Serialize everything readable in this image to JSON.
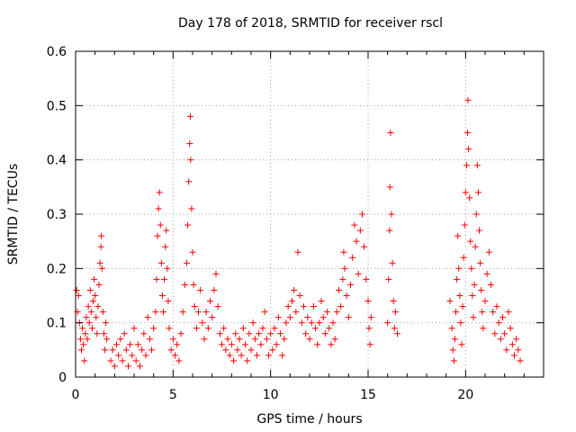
{
  "chart_data": {
    "type": "scatter",
    "title": "Day 178 of 2018, SRMTID for receiver rscl",
    "xlabel": "GPS time / hours",
    "ylabel": "SRMTID / TECUs",
    "xlim": [
      0,
      24
    ],
    "ylim": [
      0,
      0.6
    ],
    "x_ticks": [
      "0",
      "5",
      "10",
      "15",
      "20"
    ],
    "y_ticks": [
      "0",
      "0.1",
      "0.2",
      "0.3",
      "0.4",
      "0.5",
      "0.6"
    ],
    "grid": true,
    "marker": "+",
    "series": [
      {
        "name": "SRMTID",
        "color": "#ff0000",
        "points": [
          [
            0.05,
            0.16
          ],
          [
            0.1,
            0.12
          ],
          [
            0.15,
            0.15
          ],
          [
            0.2,
            0.1
          ],
          [
            0.25,
            0.07
          ],
          [
            0.3,
            0.05
          ],
          [
            0.35,
            0.09
          ],
          [
            0.4,
            0.06
          ],
          [
            0.45,
            0.03
          ],
          [
            0.5,
            0.08
          ],
          [
            0.55,
            0.11
          ],
          [
            0.6,
            0.07
          ],
          [
            0.65,
            0.13
          ],
          [
            0.7,
            0.1
          ],
          [
            0.75,
            0.16
          ],
          [
            0.8,
            0.12
          ],
          [
            0.85,
            0.09
          ],
          [
            0.9,
            0.14
          ],
          [
            0.95,
            0.18
          ],
          [
            1.0,
            0.15
          ],
          [
            1.05,
            0.11
          ],
          [
            1.1,
            0.08
          ],
          [
            1.15,
            0.13
          ],
          [
            1.2,
            0.17
          ],
          [
            1.25,
            0.21
          ],
          [
            1.3,
            0.24
          ],
          [
            1.32,
            0.26
          ],
          [
            1.35,
            0.2
          ],
          [
            1.4,
            0.12
          ],
          [
            1.45,
            0.08
          ],
          [
            1.5,
            0.05
          ],
          [
            1.55,
            0.1
          ],
          [
            1.6,
            0.07
          ],
          [
            1.8,
            0.03
          ],
          [
            1.9,
            0.05
          ],
          [
            2.0,
            0.02
          ],
          [
            2.1,
            0.06
          ],
          [
            2.2,
            0.04
          ],
          [
            2.3,
            0.07
          ],
          [
            2.4,
            0.03
          ],
          [
            2.5,
            0.08
          ],
          [
            2.6,
            0.05
          ],
          [
            2.7,
            0.02
          ],
          [
            2.8,
            0.06
          ],
          [
            2.9,
            0.04
          ],
          [
            3.0,
            0.09
          ],
          [
            3.1,
            0.03
          ],
          [
            3.2,
            0.06
          ],
          [
            3.3,
            0.02
          ],
          [
            3.4,
            0.05
          ],
          [
            3.5,
            0.08
          ],
          [
            3.6,
            0.04
          ],
          [
            3.7,
            0.11
          ],
          [
            3.8,
            0.07
          ],
          [
            3.9,
            0.05
          ],
          [
            4.0,
            0.09
          ],
          [
            4.1,
            0.12
          ],
          [
            4.15,
            0.18
          ],
          [
            4.2,
            0.26
          ],
          [
            4.25,
            0.31
          ],
          [
            4.3,
            0.34
          ],
          [
            4.35,
            0.28
          ],
          [
            4.4,
            0.21
          ],
          [
            4.45,
            0.15
          ],
          [
            4.5,
            0.12
          ],
          [
            4.55,
            0.18
          ],
          [
            4.6,
            0.24
          ],
          [
            4.65,
            0.27
          ],
          [
            4.7,
            0.2
          ],
          [
            4.75,
            0.14
          ],
          [
            4.8,
            0.09
          ],
          [
            4.9,
            0.05
          ],
          [
            5.0,
            0.07
          ],
          [
            5.1,
            0.04
          ],
          [
            5.2,
            0.06
          ],
          [
            5.3,
            0.03
          ],
          [
            5.4,
            0.08
          ],
          [
            5.5,
            0.12
          ],
          [
            5.6,
            0.17
          ],
          [
            5.7,
            0.21
          ],
          [
            5.75,
            0.28
          ],
          [
            5.8,
            0.36
          ],
          [
            5.85,
            0.43
          ],
          [
            5.88,
            0.48
          ],
          [
            5.9,
            0.4
          ],
          [
            5.95,
            0.31
          ],
          [
            6.0,
            0.23
          ],
          [
            6.05,
            0.17
          ],
          [
            6.1,
            0.13
          ],
          [
            6.2,
            0.09
          ],
          [
            6.3,
            0.12
          ],
          [
            6.4,
            0.16
          ],
          [
            6.5,
            0.1
          ],
          [
            6.6,
            0.07
          ],
          [
            6.7,
            0.12
          ],
          [
            6.8,
            0.09
          ],
          [
            6.9,
            0.14
          ],
          [
            7.0,
            0.11
          ],
          [
            7.1,
            0.16
          ],
          [
            7.2,
            0.19
          ],
          [
            7.3,
            0.13
          ],
          [
            7.4,
            0.08
          ],
          [
            7.5,
            0.06
          ],
          [
            7.6,
            0.09
          ],
          [
            7.7,
            0.05
          ],
          [
            7.8,
            0.07
          ],
          [
            7.9,
            0.04
          ],
          [
            8.0,
            0.06
          ],
          [
            8.1,
            0.03
          ],
          [
            8.2,
            0.08
          ],
          [
            8.3,
            0.05
          ],
          [
            8.4,
            0.07
          ],
          [
            8.5,
            0.04
          ],
          [
            8.6,
            0.09
          ],
          [
            8.7,
            0.06
          ],
          [
            8.8,
            0.03
          ],
          [
            8.9,
            0.08
          ],
          [
            9.0,
            0.05
          ],
          [
            9.1,
            0.1
          ],
          [
            9.2,
            0.07
          ],
          [
            9.3,
            0.04
          ],
          [
            9.4,
            0.08
          ],
          [
            9.5,
            0.06
          ],
          [
            9.6,
            0.09
          ],
          [
            9.7,
            0.12
          ],
          [
            9.8,
            0.07
          ],
          [
            9.9,
            0.04
          ],
          [
            10.0,
            0.08
          ],
          [
            10.1,
            0.05
          ],
          [
            10.2,
            0.09
          ],
          [
            10.3,
            0.06
          ],
          [
            10.4,
            0.11
          ],
          [
            10.5,
            0.08
          ],
          [
            10.6,
            0.04
          ],
          [
            10.7,
            0.07
          ],
          [
            10.8,
            0.1
          ],
          [
            10.9,
            0.13
          ],
          [
            11.0,
            0.11
          ],
          [
            11.1,
            0.14
          ],
          [
            11.2,
            0.16
          ],
          [
            11.3,
            0.12
          ],
          [
            11.4,
            0.23
          ],
          [
            11.5,
            0.15
          ],
          [
            11.6,
            0.1
          ],
          [
            11.7,
            0.13
          ],
          [
            11.8,
            0.08
          ],
          [
            11.9,
            0.11
          ],
          [
            12.0,
            0.07
          ],
          [
            12.1,
            0.1
          ],
          [
            12.2,
            0.13
          ],
          [
            12.3,
            0.09
          ],
          [
            12.4,
            0.06
          ],
          [
            12.5,
            0.1
          ],
          [
            12.6,
            0.14
          ],
          [
            12.7,
            0.11
          ],
          [
            12.8,
            0.08
          ],
          [
            12.9,
            0.12
          ],
          [
            13.0,
            0.09
          ],
          [
            13.1,
            0.06
          ],
          [
            13.2,
            0.1
          ],
          [
            13.3,
            0.07
          ],
          [
            13.4,
            0.12
          ],
          [
            13.5,
            0.16
          ],
          [
            13.6,
            0.13
          ],
          [
            13.7,
            0.18
          ],
          [
            13.75,
            0.23
          ],
          [
            13.8,
            0.2
          ],
          [
            13.9,
            0.15
          ],
          [
            14.0,
            0.11
          ],
          [
            14.1,
            0.17
          ],
          [
            14.2,
            0.22
          ],
          [
            14.3,
            0.28
          ],
          [
            14.4,
            0.25
          ],
          [
            14.5,
            0.19
          ],
          [
            14.6,
            0.27
          ],
          [
            14.7,
            0.3
          ],
          [
            14.8,
            0.24
          ],
          [
            14.9,
            0.18
          ],
          [
            15.0,
            0.14
          ],
          [
            15.05,
            0.09
          ],
          [
            15.1,
            0.06
          ],
          [
            15.15,
            0.11
          ],
          [
            16.0,
            0.1
          ],
          [
            16.05,
            0.18
          ],
          [
            16.1,
            0.27
          ],
          [
            16.12,
            0.35
          ],
          [
            16.15,
            0.45
          ],
          [
            16.2,
            0.3
          ],
          [
            16.25,
            0.21
          ],
          [
            16.3,
            0.14
          ],
          [
            16.35,
            0.09
          ],
          [
            16.4,
            0.12
          ],
          [
            16.5,
            0.08
          ],
          [
            19.2,
            0.14
          ],
          [
            19.3,
            0.09
          ],
          [
            19.35,
            0.05
          ],
          [
            19.4,
            0.03
          ],
          [
            19.45,
            0.07
          ],
          [
            19.5,
            0.12
          ],
          [
            19.55,
            0.18
          ],
          [
            19.6,
            0.26
          ],
          [
            19.65,
            0.2
          ],
          [
            19.7,
            0.15
          ],
          [
            19.75,
            0.1
          ],
          [
            19.8,
            0.06
          ],
          [
            19.85,
            0.13
          ],
          [
            19.9,
            0.22
          ],
          [
            19.95,
            0.28
          ],
          [
            20.0,
            0.34
          ],
          [
            20.05,
            0.39
          ],
          [
            20.1,
            0.45
          ],
          [
            20.12,
            0.51
          ],
          [
            20.15,
            0.42
          ],
          [
            20.2,
            0.33
          ],
          [
            20.25,
            0.25
          ],
          [
            20.3,
            0.2
          ],
          [
            20.35,
            0.15
          ],
          [
            20.4,
            0.11
          ],
          [
            20.45,
            0.17
          ],
          [
            20.5,
            0.24
          ],
          [
            20.55,
            0.3
          ],
          [
            20.6,
            0.39
          ],
          [
            20.65,
            0.34
          ],
          [
            20.7,
            0.27
          ],
          [
            20.75,
            0.21
          ],
          [
            20.8,
            0.16
          ],
          [
            20.85,
            0.12
          ],
          [
            20.9,
            0.09
          ],
          [
            21.0,
            0.14
          ],
          [
            21.1,
            0.19
          ],
          [
            21.2,
            0.23
          ],
          [
            21.3,
            0.17
          ],
          [
            21.4,
            0.12
          ],
          [
            21.5,
            0.08
          ],
          [
            21.6,
            0.13
          ],
          [
            21.7,
            0.1
          ],
          [
            21.8,
            0.07
          ],
          [
            21.9,
            0.11
          ],
          [
            22.0,
            0.08
          ],
          [
            22.1,
            0.05
          ],
          [
            22.2,
            0.12
          ],
          [
            22.3,
            0.09
          ],
          [
            22.4,
            0.06
          ],
          [
            22.5,
            0.04
          ],
          [
            22.6,
            0.07
          ],
          [
            22.7,
            0.05
          ],
          [
            22.8,
            0.03
          ]
        ]
      }
    ]
  }
}
